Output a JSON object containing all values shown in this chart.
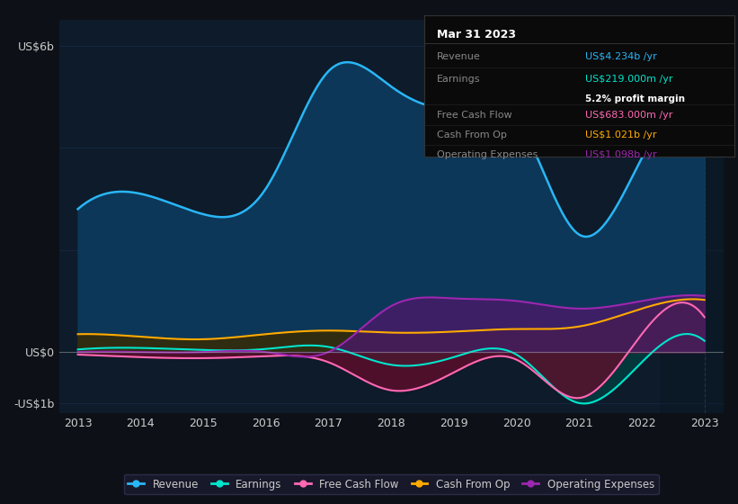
{
  "bg_color": "#0d1117",
  "plot_bg_color": "#0d1b2a",
  "grid_color": "#1e3a5f",
  "text_color": "#cccccc",
  "title_color": "#ffffff",
  "ylim": [
    -1.2,
    6.5
  ],
  "ylabel_top": "US$6b",
  "ylabel_zero": "US$0",
  "ylabel_bottom": "-US$1b",
  "years": [
    2013,
    2014,
    2015,
    2016,
    2017,
    2018,
    2019,
    2020,
    2021,
    2022,
    2023
  ],
  "revenue": [
    2.8,
    3.1,
    2.7,
    3.2,
    5.5,
    5.2,
    4.8,
    4.6,
    2.3,
    3.8,
    4.234
  ],
  "earnings": [
    0.05,
    0.08,
    0.04,
    0.06,
    0.1,
    -0.25,
    -0.1,
    -0.05,
    -1.0,
    -0.2,
    0.219
  ],
  "free_cash_flow": [
    -0.05,
    -0.1,
    -0.12,
    -0.08,
    -0.2,
    -0.75,
    -0.4,
    -0.15,
    -0.9,
    0.35,
    0.683
  ],
  "cash_from_op": [
    0.35,
    0.3,
    0.25,
    0.35,
    0.42,
    0.38,
    0.4,
    0.45,
    0.5,
    0.85,
    1.021
  ],
  "operating_expenses": [
    0.0,
    0.0,
    0.0,
    0.0,
    0.0,
    0.9,
    1.05,
    1.0,
    0.85,
    1.0,
    1.098
  ],
  "revenue_color": "#29b6f6",
  "earnings_color": "#00e5cc",
  "free_cash_flow_color": "#ff69b4",
  "cash_from_op_color": "#ffaa00",
  "operating_expenses_color": "#9c27b0",
  "tooltip_title": "Mar 31 2023",
  "tooltip_revenue": "US$4.234b /yr",
  "tooltip_earnings": "US$219.000m /yr",
  "tooltip_margin": "5.2% profit margin",
  "tooltip_fcf": "US$683.000m /yr",
  "tooltip_cashop": "US$1.021b /yr",
  "tooltip_opex": "US$1.098b /yr"
}
